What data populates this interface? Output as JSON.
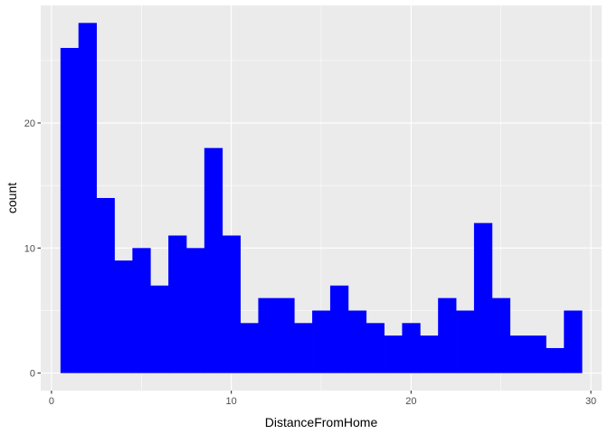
{
  "chart_data": {
    "type": "bar",
    "title": "",
    "xlabel": "DistanceFromHome",
    "ylabel": "count",
    "grid": true,
    "xlim": [
      -0.6,
      30.6
    ],
    "ylim": [
      -1.4,
      29.4
    ],
    "x_ticks": [
      0,
      10,
      20,
      30
    ],
    "x_tick_labels": [
      "0",
      "10",
      "20",
      "30"
    ],
    "y_ticks": [
      0,
      10,
      20
    ],
    "y_tick_labels": [
      "0",
      "10",
      "20"
    ],
    "bar_color": "#0000FF",
    "panel_background": "#EBEBEB",
    "grid_color": "#FFFFFF",
    "bins": {
      "centers": [
        1,
        2,
        3,
        4,
        5,
        6,
        7,
        8,
        9,
        10,
        11,
        12,
        13,
        14,
        15,
        16,
        17,
        18,
        19,
        20,
        21,
        22,
        23,
        24,
        25,
        26,
        27,
        28,
        29
      ],
      "width": 1
    },
    "values": [
      26,
      28,
      14,
      9,
      10,
      7,
      11,
      10,
      18,
      11,
      4,
      6,
      6,
      4,
      5,
      7,
      5,
      4,
      3,
      4,
      3,
      6,
      5,
      12,
      6,
      3,
      3,
      2,
      5
    ]
  }
}
